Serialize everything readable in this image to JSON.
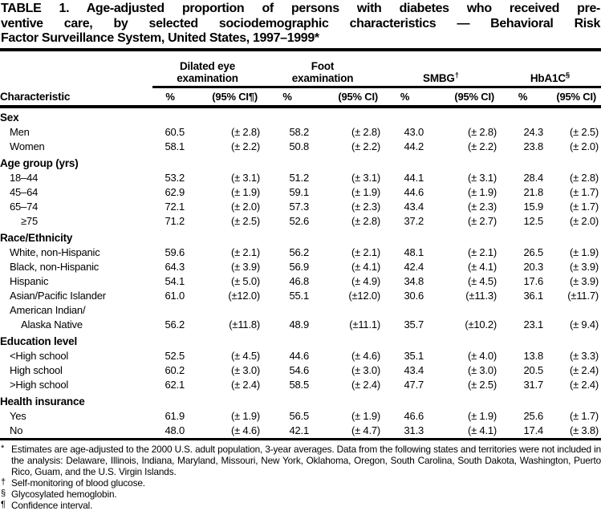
{
  "title_lines": [
    "TABLE 1. Age-adjusted proportion of persons with diabetes who received pre-",
    "ventive care, by selected sociodemographic characteristics — Behavioral Risk",
    "Factor Surveillance System, United States, 1997–1999*"
  ],
  "table": {
    "char_header": "Characteristic",
    "groups": [
      {
        "label": "Dilated eye\nexamination",
        "sup": "",
        "pct_label": "%",
        "ci_label": "(95% CI¶)"
      },
      {
        "label": "Foot\nexamination",
        "sup": "",
        "pct_label": "%",
        "ci_label": "(95% CI)"
      },
      {
        "label": "SMBG",
        "sup": "†",
        "pct_label": "%",
        "ci_label": "(95% CI)"
      },
      {
        "label": "HbA1C",
        "sup": "§",
        "pct_label": "%",
        "ci_label": "(95% CI)"
      }
    ],
    "rows": [
      {
        "type": "section",
        "label": "Sex"
      },
      {
        "type": "data",
        "label": "Men",
        "indent": 1,
        "values": [
          "60.5",
          "(± 2.8)",
          "58.2",
          "(± 2.8)",
          "43.0",
          "(± 2.8)",
          "24.3",
          "(± 2.5)"
        ]
      },
      {
        "type": "data",
        "label": "Women",
        "indent": 1,
        "values": [
          "58.1",
          "(± 2.2)",
          "50.8",
          "(± 2.2)",
          "44.2",
          "(± 2.2)",
          "23.8",
          "(± 2.0)"
        ]
      },
      {
        "type": "section",
        "label": "Age group (yrs)"
      },
      {
        "type": "data",
        "label": "18–44",
        "indent": 1,
        "values": [
          "53.2",
          "(± 3.1)",
          "51.2",
          "(± 3.1)",
          "44.1",
          "(± 3.1)",
          "28.4",
          "(± 2.8)"
        ]
      },
      {
        "type": "data",
        "label": "45–64",
        "indent": 1,
        "values": [
          "62.9",
          "(± 1.9)",
          "59.1",
          "(± 1.9)",
          "44.6",
          "(± 1.9)",
          "21.8",
          "(± 1.7)"
        ]
      },
      {
        "type": "data",
        "label": "65–74",
        "indent": 1,
        "values": [
          "72.1",
          "(± 2.0)",
          "57.3",
          "(± 2.3)",
          "43.4",
          "(± 2.3)",
          "15.9",
          "(± 1.7)"
        ]
      },
      {
        "type": "data",
        "label": "≥75",
        "indent": 2,
        "values": [
          "71.2",
          "(± 2.5)",
          "52.6",
          "(± 2.8)",
          "37.2",
          "(± 2.7)",
          "12.5",
          "(± 2.0)"
        ]
      },
      {
        "type": "section",
        "label": "Race/Ethnicity"
      },
      {
        "type": "data",
        "label": "White, non-Hispanic",
        "indent": 1,
        "values": [
          "59.6",
          "(± 2.1)",
          "56.2",
          "(± 2.1)",
          "48.1",
          "(± 2.1)",
          "26.5",
          "(± 1.9)"
        ]
      },
      {
        "type": "data",
        "label": "Black, non-Hispanic",
        "indent": 1,
        "values": [
          "64.3",
          "(± 3.9)",
          "56.9",
          "(± 4.1)",
          "42.4",
          "(± 4.1)",
          "20.3",
          "(± 3.9)"
        ]
      },
      {
        "type": "data",
        "label": "Hispanic",
        "indent": 1,
        "values": [
          "54.1",
          "(± 5.0)",
          "46.8",
          "(± 4.9)",
          "34.8",
          "(± 4.5)",
          "17.6",
          "(± 3.9)"
        ]
      },
      {
        "type": "data",
        "label": "Asian/Pacific Islander",
        "indent": 1,
        "values": [
          "61.0",
          "(±12.0)",
          "55.1",
          "(±12.0)",
          "30.6",
          "(±11.3)",
          "36.1",
          "(±11.7)"
        ]
      },
      {
        "type": "data",
        "label": "American Indian/",
        "indent": 1,
        "values": [
          "",
          "",
          "",
          "",
          "",
          "",
          "",
          ""
        ]
      },
      {
        "type": "data",
        "label": "Alaska Native",
        "indent": 2,
        "values": [
          "56.2",
          "(±11.8)",
          "48.9",
          "(±11.1)",
          "35.7",
          "(±10.2)",
          "23.1",
          "(± 9.4)"
        ]
      },
      {
        "type": "section",
        "label": "Education level"
      },
      {
        "type": "data",
        "label": "<High school",
        "indent": 1,
        "values": [
          "52.5",
          "(± 4.5)",
          "44.6",
          "(± 4.6)",
          "35.1",
          "(± 4.0)",
          "13.8",
          "(± 3.3)"
        ]
      },
      {
        "type": "data",
        "label": "High school",
        "indent": 1,
        "values": [
          "60.2",
          "(± 3.0)",
          "54.6",
          "(± 3.0)",
          "43.4",
          "(± 3.0)",
          "20.5",
          "(± 2.4)"
        ]
      },
      {
        "type": "data",
        "label": ">High school",
        "indent": 1,
        "values": [
          "62.1",
          "(± 2.4)",
          "58.5",
          "(± 2.4)",
          "47.7",
          "(± 2.5)",
          "31.7",
          "(± 2.4)"
        ]
      },
      {
        "type": "section",
        "label": "Health insurance"
      },
      {
        "type": "data",
        "label": "Yes",
        "indent": 1,
        "values": [
          "61.9",
          "(± 1.9)",
          "56.5",
          "(± 1.9)",
          "46.6",
          "(± 1.9)",
          "25.6",
          "(± 1.7)"
        ]
      },
      {
        "type": "data",
        "label": "No",
        "indent": 1,
        "values": [
          "48.0",
          "(± 4.6)",
          "42.1",
          "(± 4.7)",
          "31.3",
          "(± 4.1)",
          "17.4",
          "(± 3.8)"
        ]
      }
    ]
  },
  "footnotes": [
    {
      "marker": "*",
      "text": "Estimates are age-adjusted to the 2000 U.S. adult population, 3-year averages. Data from the following states and territories were not included in the analysis: Delaware, Illinois, Indiana, Maryland, Missouri, New York, Oklahoma, Oregon, South Carolina, South Dakota, Washington, Puerto Rico, Guam, and the U.S. Virgin Islands."
    },
    {
      "marker": "†",
      "text": "Self-monitoring of blood glucose."
    },
    {
      "marker": "§",
      "text": "Glycosylated hemoglobin."
    },
    {
      "marker": "¶",
      "text": "Confidence interval."
    }
  ]
}
